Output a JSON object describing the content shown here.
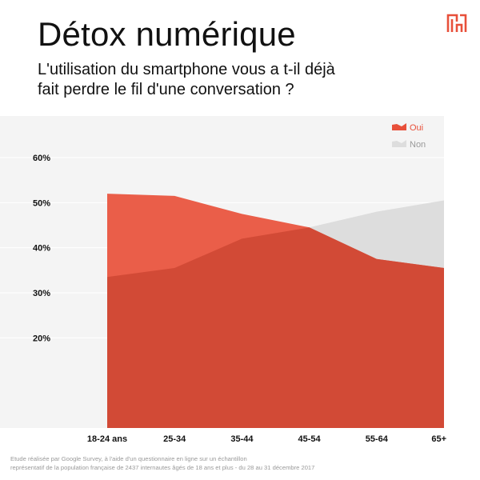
{
  "header": {
    "title": "Détox numérique",
    "subtitle_line1": "L'utilisation du smartphone vous a t-il déjà",
    "subtitle_line2": "fait perdre le fil d'une conversation ?"
  },
  "logo": {
    "icon": "brand-logo-icon",
    "color": "#e8503a"
  },
  "footnote": {
    "line1": "Etude réalisée par Google Survey, à l'aide d'un questionnaire en ligne sur un échantillon",
    "line2": "représentatif de la population française de 2437 internautes âgés de 18 ans et plus - du 28 au 31 décembre 2017"
  },
  "colors": {
    "oui": "#e8503a",
    "non": "#dddddd",
    "background": "#f4f4f4",
    "grid": "#ffffff",
    "text": "#111111",
    "legend_non_text": "#9a9a9a"
  },
  "chart_data": {
    "type": "area",
    "categories": [
      "18-24 ans",
      "25-34",
      "35-44",
      "45-54",
      "55-64",
      "65+"
    ],
    "series": [
      {
        "name": "Oui",
        "values": [
          52,
          51.5,
          47.5,
          44.5,
          37.5,
          35.5
        ],
        "color": "#e8503a"
      },
      {
        "name": "Non",
        "values": [
          33.5,
          35.5,
          42,
          44.5,
          48,
          50.5
        ],
        "color": "#dddddd"
      }
    ],
    "yticks": [
      20,
      30,
      40,
      50,
      60
    ],
    "ytick_labels": [
      "20%",
      "30%",
      "40%",
      "50%",
      "60%"
    ],
    "ylim": [
      0,
      60
    ],
    "grid": true,
    "legend_position": "top-right"
  }
}
